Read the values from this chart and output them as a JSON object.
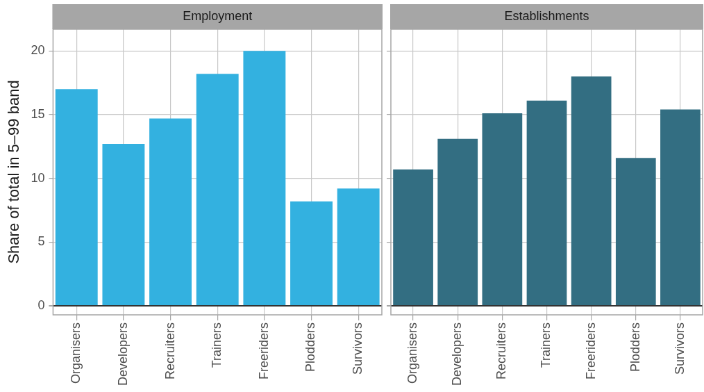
{
  "chart_data": [
    {
      "type": "bar",
      "title": "Employment",
      "ylabel": "Share of total in 5–99 band",
      "categories": [
        "Organisers",
        "Developers",
        "Recruiters",
        "Trainers",
        "Freeriders",
        "Plodders",
        "Survivors"
      ],
      "values": [
        17.0,
        12.7,
        14.7,
        18.2,
        20.0,
        8.2,
        9.2
      ],
      "color": "#33b1e0",
      "ylim": [
        -0.7,
        21.7
      ],
      "yticks": [
        0,
        5,
        10,
        15,
        20
      ],
      "grid": true,
      "legend": false
    },
    {
      "type": "bar",
      "title": "Establishments",
      "categories": [
        "Organisers",
        "Developers",
        "Recruiters",
        "Trainers",
        "Freeriders",
        "Plodders",
        "Survivors"
      ],
      "values": [
        10.7,
        13.1,
        15.1,
        16.1,
        18.0,
        11.6,
        15.4
      ],
      "color": "#336e82",
      "ylim": [
        -0.7,
        21.7
      ],
      "yticks": [
        0,
        5,
        10,
        15,
        20
      ],
      "grid": true,
      "legend": false,
      "tick_labels": "x"
    }
  ]
}
